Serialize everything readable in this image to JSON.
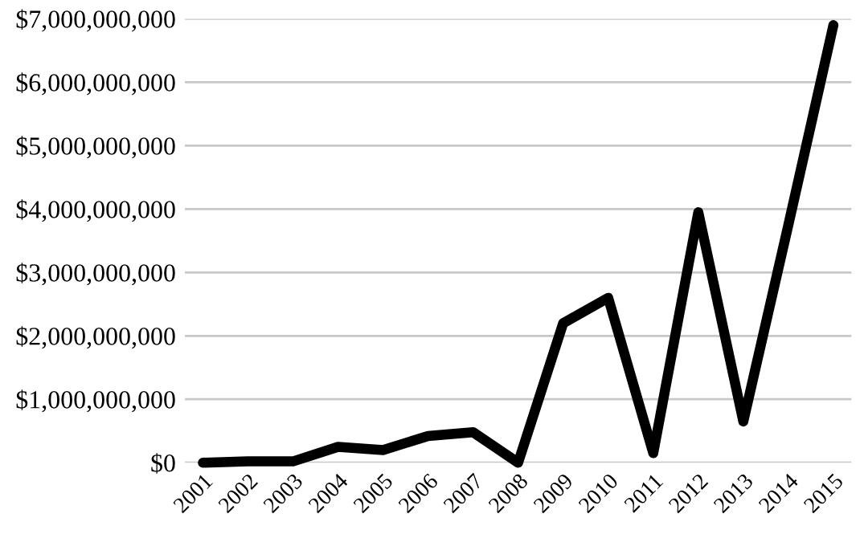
{
  "chart_data": {
    "type": "line",
    "categories": [
      "2001",
      "2002",
      "2003",
      "2004",
      "2005",
      "2006",
      "2007",
      "2008",
      "2009",
      "2010",
      "2011",
      "2012",
      "2013",
      "2014",
      "2015"
    ],
    "series": [
      {
        "color": "#000000",
        "values": [
          0,
          20000000,
          20000000,
          250000000,
          200000000,
          420000000,
          480000000,
          0,
          2200000000,
          2600000000,
          150000000,
          3950000000,
          650000000,
          3750000000,
          6900000000
        ]
      }
    ],
    "ylim": [
      0,
      7000000000
    ],
    "yticks": [
      {
        "value": 0,
        "label": "$0"
      },
      {
        "value": 1000000000,
        "label": "$1,000,000,000"
      },
      {
        "value": 2000000000,
        "label": "$2,000,000,000"
      },
      {
        "value": 3000000000,
        "label": "$3,000,000,000"
      },
      {
        "value": 4000000000,
        "label": "$4,000,000,000"
      },
      {
        "value": 5000000000,
        "label": "$5,000,000,000"
      },
      {
        "value": 6000000000,
        "label": "$6,000,000,000"
      },
      {
        "value": 7000000000,
        "label": "$7,000,000,000"
      }
    ],
    "grid": "y",
    "legend": false,
    "marker": "none",
    "line_style": "solid"
  }
}
